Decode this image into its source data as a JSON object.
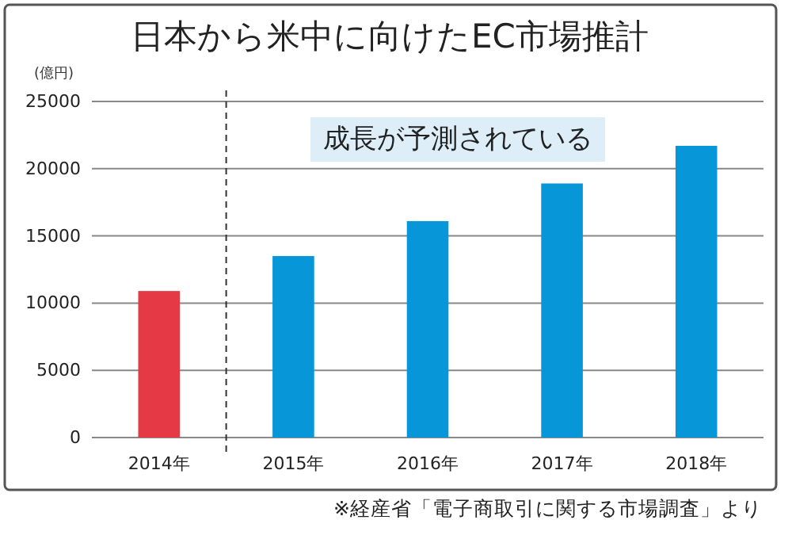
{
  "chart_data": {
    "type": "bar",
    "title": "日本から米中に向けたEC市場推計",
    "ylabel": "(億円)",
    "categories": [
      "2014年",
      "2015年",
      "2016年",
      "2017年",
      "2018年"
    ],
    "values": [
      10900,
      13500,
      16100,
      18900,
      21700
    ],
    "colors": [
      "#e63946",
      "#0796d8",
      "#0796d8",
      "#0796d8",
      "#0796d8"
    ],
    "ylim": [
      0,
      25000
    ],
    "yticks": [
      0,
      5000,
      10000,
      15000,
      20000,
      25000
    ],
    "grid": "y",
    "annotations": [
      "成長が予測されている",
      "※経産省「電子商取引に関する市場調査」より"
    ]
  }
}
